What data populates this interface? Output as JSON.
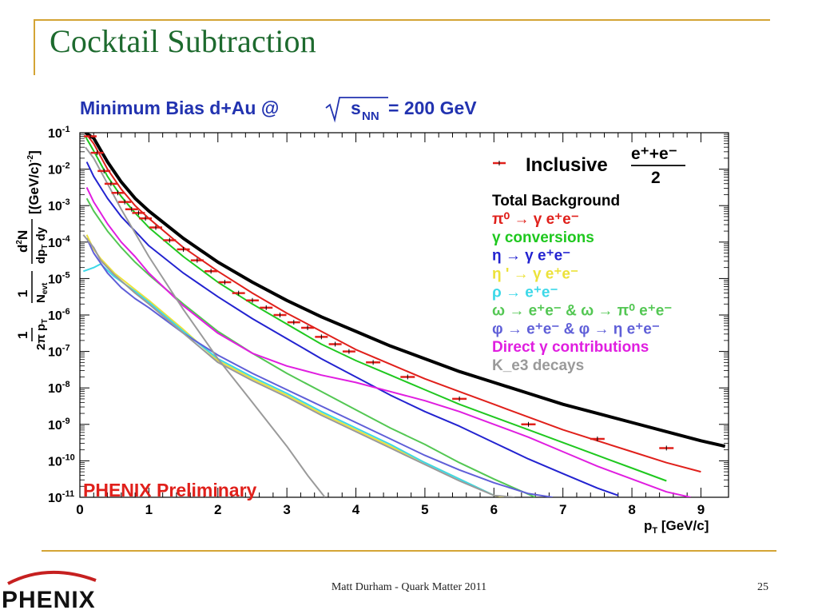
{
  "slide": {
    "title": "Cocktail Subtraction",
    "footer": "Matt Durham - Quark Matter 2011",
    "page_number": "25",
    "logo_text": "PHENIX",
    "accent_color": "#d4a435",
    "title_color": "#1d6a2e"
  },
  "chart_data": {
    "type": "line",
    "title": "Minimum Bias d+Au @√s_NN = 200 GeV",
    "title_parts": {
      "main": "Minimum Bias d+Au @",
      "sqrt_s": "s",
      "sub": "NN",
      "tail": " = 200 GeV"
    },
    "xlabel": "p_T [GeV/c]",
    "ylabel": "1/(2π p_T) 1/N_evt d²N/(dp_T dy) [(GeV/c)^-2]",
    "xlim": [
      0,
      9.4
    ],
    "ylim_log10": [
      -11,
      -1
    ],
    "y_log_scale": true,
    "x_ticks": [
      "0",
      "1",
      "2",
      "3",
      "4",
      "5",
      "6",
      "7",
      "8",
      "9"
    ],
    "y_ticks": [
      {
        "base": "10",
        "exp": "-1"
      },
      {
        "base": "10",
        "exp": "-2"
      },
      {
        "base": "10",
        "exp": "-3"
      },
      {
        "base": "10",
        "exp": "-4"
      },
      {
        "base": "10",
        "exp": "-5"
      },
      {
        "base": "10",
        "exp": "-6"
      },
      {
        "base": "10",
        "exp": "-7"
      },
      {
        "base": "10",
        "exp": "-8"
      },
      {
        "base": "10",
        "exp": "-9"
      },
      {
        "base": "10",
        "exp": "-10"
      },
      {
        "base": "10",
        "exp": "-11"
      }
    ],
    "annotation": "PHENIX Preliminary",
    "legend_position": "top-right",
    "legend": {
      "data_entry": "Inclusive",
      "data_fraction": {
        "numerator": "e⁺+e⁻",
        "denominator": "2"
      },
      "entries": [
        {
          "label": "Total Background",
          "color": "#000000"
        },
        {
          "label": "π⁰ → γ e⁺e⁻",
          "color": "#e0201b"
        },
        {
          "label": "γ conversions",
          "color": "#1fc81f"
        },
        {
          "label": "η → γ e⁺e⁻",
          "color": "#2323d0"
        },
        {
          "label": "η ' → γ e⁺e⁻",
          "color": "#ece23a"
        },
        {
          "label": "ρ → e⁺e⁻",
          "color": "#3cd8e8"
        },
        {
          "label": "ω → e⁺e⁻ & ω → π⁰ e⁺e⁻",
          "color": "#53c753"
        },
        {
          "label": "φ → e⁺e⁻ & φ → η e⁺e⁻",
          "color": "#5f5fd8"
        },
        {
          "label": "Direct γ contributions",
          "color": "#e01ee0"
        },
        {
          "label": "K_e3 decays",
          "color": "#9a9a9a"
        }
      ]
    },
    "data_series": {
      "name": "Inclusive",
      "color": "#e0201b",
      "x": [
        0.15,
        0.25,
        0.35,
        0.45,
        0.55,
        0.65,
        0.75,
        0.85,
        0.95,
        1.1,
        1.3,
        1.5,
        1.7,
        1.9,
        2.1,
        2.3,
        2.5,
        2.7,
        2.9,
        3.1,
        3.3,
        3.5,
        3.7,
        3.9,
        4.25,
        4.75,
        5.5,
        6.5,
        7.5,
        8.5
      ],
      "log10_y": [
        -1.1,
        -1.55,
        -2.05,
        -2.4,
        -2.65,
        -2.9,
        -3.1,
        -3.2,
        -3.35,
        -3.6,
        -3.95,
        -4.2,
        -4.5,
        -4.8,
        -5.1,
        -5.4,
        -5.6,
        -5.8,
        -6.0,
        -6.2,
        -6.35,
        -6.6,
        -6.8,
        -7.0,
        -7.3,
        -7.7,
        -8.3,
        -9.0,
        -9.4,
        -9.65
      ]
    },
    "series": [
      {
        "name": "Total Background",
        "color": "#000000",
        "width": 4,
        "x": [
          0.08,
          0.2,
          0.4,
          0.6,
          0.8,
          1.0,
          1.5,
          2.0,
          2.5,
          3.0,
          3.5,
          4.0,
          4.5,
          5.0,
          5.5,
          6.0,
          6.5,
          7.0,
          7.5,
          8.0,
          8.5,
          9.0,
          9.35
        ],
        "log10_y": [
          -1.0,
          -1.15,
          -1.8,
          -2.35,
          -2.8,
          -3.15,
          -3.9,
          -4.55,
          -5.1,
          -5.6,
          -6.05,
          -6.45,
          -6.85,
          -7.2,
          -7.55,
          -7.85,
          -8.15,
          -8.45,
          -8.7,
          -8.95,
          -9.2,
          -9.45,
          -9.6
        ]
      },
      {
        "name": "π⁰ → γ e⁺e⁻",
        "color": "#e0201b",
        "width": 2,
        "x": [
          0.08,
          0.2,
          0.4,
          0.6,
          0.8,
          1.0,
          1.5,
          2.0,
          2.5,
          3.0,
          3.5,
          4.0,
          4.5,
          5.0,
          5.5,
          6.0,
          6.5,
          7.0,
          7.5,
          8.0,
          8.5,
          9.0
        ],
        "log10_y": [
          -1.0,
          -1.3,
          -2.0,
          -2.55,
          -3.0,
          -3.35,
          -4.15,
          -4.8,
          -5.4,
          -5.95,
          -6.45,
          -6.95,
          -7.35,
          -7.75,
          -8.1,
          -8.45,
          -8.8,
          -9.15,
          -9.45,
          -9.75,
          -10.05,
          -10.3
        ]
      },
      {
        "name": "γ conversions",
        "color": "#1fc81f",
        "width": 2,
        "x": [
          0.08,
          0.2,
          0.4,
          0.6,
          0.8,
          1.0,
          1.5,
          2.0,
          2.5,
          3.0,
          3.5,
          4.0,
          4.5,
          5.0,
          5.5,
          6.0,
          6.5,
          7.0,
          7.5,
          8.0,
          8.5
        ],
        "log10_y": [
          -1.1,
          -1.5,
          -2.2,
          -2.75,
          -3.2,
          -3.6,
          -4.4,
          -5.1,
          -5.7,
          -6.25,
          -6.8,
          -7.25,
          -7.65,
          -8.05,
          -8.45,
          -8.8,
          -9.15,
          -9.5,
          -9.85,
          -10.2,
          -10.55
        ]
      },
      {
        "name": "η → γ e⁺e⁻",
        "color": "#2323d0",
        "width": 2,
        "x": [
          0.1,
          0.2,
          0.4,
          0.6,
          0.8,
          1.0,
          1.5,
          2.0,
          2.5,
          3.0,
          3.5,
          4.0,
          4.5,
          5.0,
          5.5,
          6.0,
          6.5,
          7.0,
          7.5,
          7.8
        ],
        "log10_y": [
          -1.8,
          -2.2,
          -2.8,
          -3.3,
          -3.7,
          -4.1,
          -4.85,
          -5.5,
          -6.1,
          -6.65,
          -7.2,
          -7.7,
          -8.2,
          -8.65,
          -9.05,
          -9.5,
          -9.95,
          -10.35,
          -10.75,
          -10.95
        ]
      },
      {
        "name": "η ' → γ e⁺e⁻",
        "color": "#ece23a",
        "width": 2,
        "x": [
          0.1,
          0.2,
          0.3,
          0.5,
          0.8,
          1.0,
          1.5,
          2.0,
          2.5,
          3.0,
          3.5,
          4.0,
          4.5,
          5.0,
          5.5,
          6.0,
          6.15
        ],
        "log10_y": [
          -3.8,
          -4.2,
          -4.45,
          -4.85,
          -5.3,
          -5.6,
          -6.4,
          -7.25,
          -7.75,
          -8.2,
          -8.7,
          -9.15,
          -9.6,
          -10.05,
          -10.5,
          -10.95,
          -11.0
        ]
      },
      {
        "name": "ρ → e⁺e⁻",
        "color": "#3cd8e8",
        "width": 2,
        "x": [
          0.05,
          0.2,
          0.3,
          0.5,
          0.8,
          1.0,
          1.5,
          2.0,
          2.5,
          3.0,
          3.5,
          4.0,
          4.5,
          5.0,
          5.5,
          6.0
        ],
        "log10_y": [
          -4.8,
          -4.7,
          -4.6,
          -4.95,
          -5.35,
          -5.65,
          -6.45,
          -7.2,
          -7.7,
          -8.15,
          -8.65,
          -9.1,
          -9.55,
          -10.05,
          -10.5,
          -10.95
        ]
      },
      {
        "name": "ω → e⁺e⁻ & ω → π⁰ e⁺e⁻",
        "color": "#53c753",
        "width": 2,
        "x": [
          0.1,
          0.2,
          0.4,
          0.6,
          0.8,
          1.0,
          1.5,
          2.0,
          2.5,
          3.0,
          3.5,
          4.0,
          4.5,
          5.0,
          5.5,
          6.0,
          6.6
        ],
        "log10_y": [
          -2.8,
          -3.15,
          -3.7,
          -4.15,
          -4.55,
          -4.9,
          -5.7,
          -6.45,
          -7.05,
          -7.6,
          -8.1,
          -8.6,
          -9.1,
          -9.55,
          -10.05,
          -10.5,
          -11.0
        ]
      },
      {
        "name": "φ → e⁺e⁻ & φ → η e⁺e⁻",
        "color": "#5f5fd8",
        "width": 2,
        "x": [
          0.1,
          0.2,
          0.4,
          0.6,
          0.8,
          1.0,
          1.5,
          2.0,
          2.5,
          3.0,
          3.5,
          4.0,
          4.5,
          5.0,
          5.5,
          6.0,
          6.5,
          6.85
        ],
        "log10_y": [
          -3.9,
          -4.3,
          -4.85,
          -5.25,
          -5.55,
          -5.8,
          -6.5,
          -7.1,
          -7.6,
          -8.05,
          -8.5,
          -8.95,
          -9.4,
          -9.85,
          -10.25,
          -10.6,
          -10.9,
          -11.0
        ]
      },
      {
        "name": "Direct γ contributions",
        "color": "#e01ee0",
        "width": 2,
        "x": [
          0.1,
          0.2,
          0.4,
          0.6,
          0.8,
          1.0,
          1.5,
          2.0,
          2.5,
          3.0,
          3.5,
          4.0,
          4.5,
          5.0,
          5.5,
          6.0,
          6.5,
          7.0,
          7.5,
          8.0,
          8.5,
          8.85
        ],
        "log10_y": [
          -2.5,
          -2.9,
          -3.5,
          -4.0,
          -4.4,
          -4.85,
          -5.75,
          -6.5,
          -7.05,
          -7.4,
          -7.65,
          -7.85,
          -8.1,
          -8.35,
          -8.65,
          -9.0,
          -9.35,
          -9.75,
          -10.15,
          -10.5,
          -10.85,
          -11.0
        ]
      },
      {
        "name": "K_e3 decays",
        "color": "#9a9a9a",
        "width": 2,
        "x": [
          0.08,
          0.2,
          0.4,
          0.6,
          0.8,
          1.0,
          1.5,
          2.0,
          2.5,
          3.0,
          3.3,
          3.55
        ],
        "log10_y": [
          -1.4,
          -1.7,
          -2.4,
          -3.1,
          -3.75,
          -4.4,
          -5.85,
          -7.2,
          -8.4,
          -9.6,
          -10.4,
          -11.0
        ]
      },
      {
        "name": "K_e3 decays",
        "color": "#9a9a9a",
        "width": 2,
        "x": [
          0.05,
          0.2,
          0.3,
          0.5,
          0.8,
          1.0,
          1.5,
          2.0,
          2.5,
          3.0,
          3.5,
          4.0,
          4.5,
          5.0,
          5.5,
          6.0,
          6.3
        ],
        "log10_y": [
          -3.8,
          -4.15,
          -4.5,
          -4.9,
          -5.4,
          -5.7,
          -6.5,
          -7.3,
          -7.8,
          -8.25,
          -8.75,
          -9.2,
          -9.65,
          -10.1,
          -10.55,
          -10.95,
          -11.0
        ]
      }
    ]
  }
}
